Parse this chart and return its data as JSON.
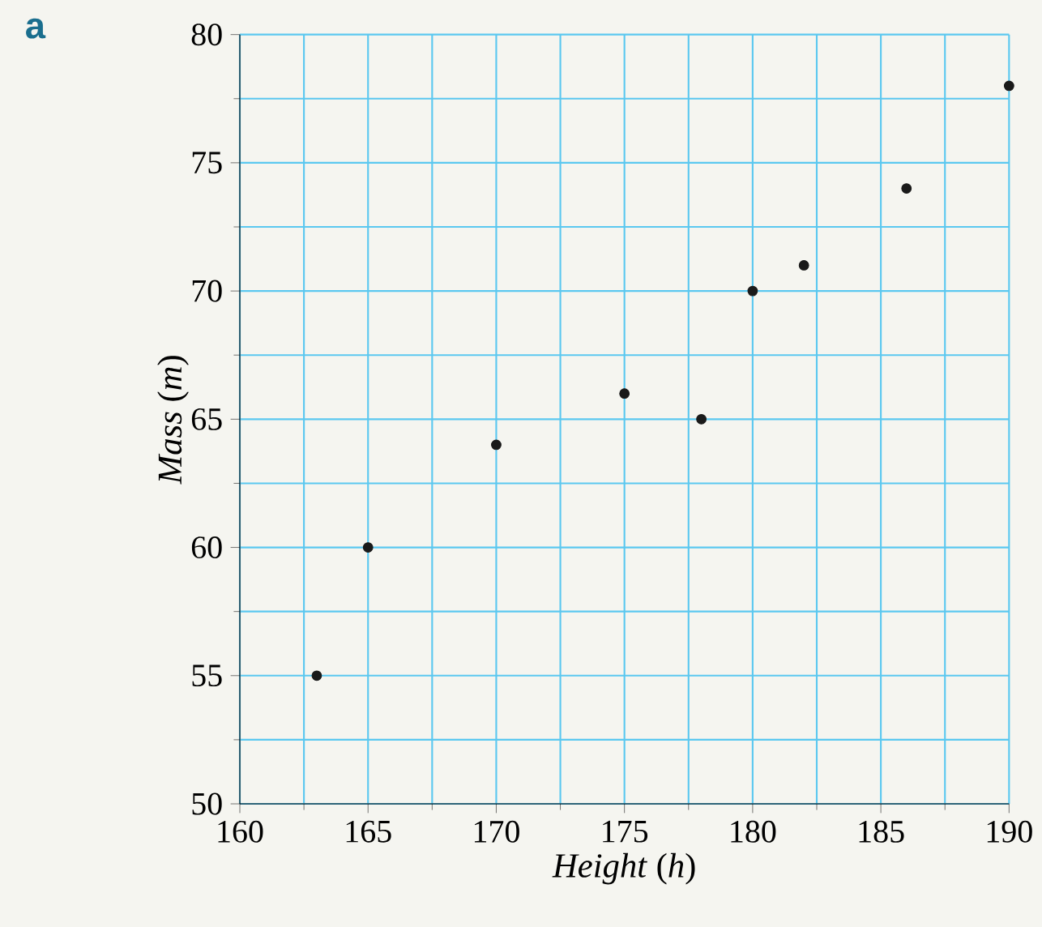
{
  "chart_data": {
    "type": "scatter",
    "xlabel": "*Height* (*h*)",
    "ylabel": "*Mass* (*m*)",
    "annotations": [
      "a"
    ],
    "x": [
      163,
      165,
      170,
      175,
      178,
      180,
      182,
      186,
      190
    ],
    "values": [
      55,
      60,
      64,
      66,
      65,
      70,
      71,
      74,
      78
    ],
    "color": "#1a1a1a",
    "marker": "circle",
    "grid": true,
    "xlim": [
      160,
      190
    ],
    "ylim": [
      50,
      80
    ],
    "xticks": [
      160,
      165,
      170,
      175,
      180,
      185,
      190
    ],
    "yticks": [
      50,
      55,
      60,
      65,
      70,
      75,
      80
    ]
  }
}
